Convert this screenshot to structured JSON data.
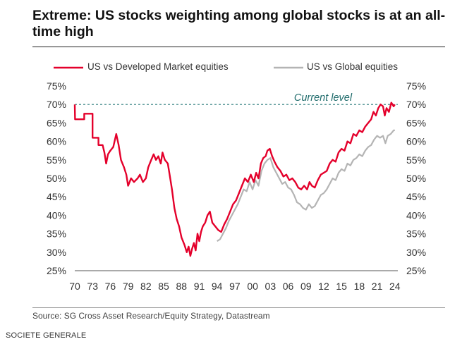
{
  "title": "Extreme: US stocks weighting among global stocks is at an all-time high",
  "source": "Source: SG Cross Asset Research/Equity Strategy, Datastream",
  "credit": "SOCIETE GENERALE",
  "colors": {
    "developed": "#e4002b",
    "global": "#b4b4b4",
    "reference": "#2e7d7d"
  },
  "chart_data": {
    "type": "line",
    "title": "Extreme: US stocks weighting among global stocks is at an all-time high",
    "xlabel": "",
    "ylabel": "",
    "xlim": [
      1970,
      2024.5
    ],
    "ylim": [
      25,
      75
    ],
    "x_ticks": [
      {
        "value": 1970,
        "label": "70"
      },
      {
        "value": 1973,
        "label": "73"
      },
      {
        "value": 1976,
        "label": "76"
      },
      {
        "value": 1979,
        "label": "79"
      },
      {
        "value": 1982,
        "label": "82"
      },
      {
        "value": 1985,
        "label": "85"
      },
      {
        "value": 1988,
        "label": "88"
      },
      {
        "value": 1991,
        "label": "91"
      },
      {
        "value": 1994,
        "label": "94"
      },
      {
        "value": 1997,
        "label": "97"
      },
      {
        "value": 2000,
        "label": "00"
      },
      {
        "value": 2003,
        "label": "03"
      },
      {
        "value": 2006,
        "label": "06"
      },
      {
        "value": 2009,
        "label": "09"
      },
      {
        "value": 2012,
        "label": "12"
      },
      {
        "value": 2015,
        "label": "15"
      },
      {
        "value": 2018,
        "label": "18"
      },
      {
        "value": 2021,
        "label": "21"
      },
      {
        "value": 2024,
        "label": "24"
      }
    ],
    "y_ticks": [
      {
        "value": 75,
        "label": "75%"
      },
      {
        "value": 70,
        "label": "70%"
      },
      {
        "value": 65,
        "label": "65%"
      },
      {
        "value": 60,
        "label": "60%"
      },
      {
        "value": 55,
        "label": "55%"
      },
      {
        "value": 50,
        "label": "50%"
      },
      {
        "value": 45,
        "label": "45%"
      },
      {
        "value": 40,
        "label": "40%"
      },
      {
        "value": 35,
        "label": "35%"
      },
      {
        "value": 30,
        "label": "30%"
      },
      {
        "value": 25,
        "label": "25%"
      }
    ],
    "reference_line": {
      "value": 70,
      "label": "Current level"
    },
    "legend_position": "top",
    "series": [
      {
        "name": "US vs Developed Market equities",
        "color": "#e4002b",
        "points": [
          [
            1970.0,
            70
          ],
          [
            1970.05,
            66
          ],
          [
            1971.6,
            66
          ],
          [
            1971.6,
            67.5
          ],
          [
            1973.0,
            67.5
          ],
          [
            1973.0,
            61
          ],
          [
            1974.0,
            61
          ],
          [
            1974.0,
            59
          ],
          [
            1974.7,
            59
          ],
          [
            1975.0,
            57
          ],
          [
            1975.3,
            54
          ],
          [
            1975.6,
            56.5
          ],
          [
            1976.0,
            57.5
          ],
          [
            1976.5,
            58.5
          ],
          [
            1977.0,
            62
          ],
          [
            1977.4,
            59
          ],
          [
            1977.8,
            55
          ],
          [
            1978.3,
            53
          ],
          [
            1978.7,
            51
          ],
          [
            1979.0,
            48
          ],
          [
            1979.5,
            50
          ],
          [
            1980.0,
            49
          ],
          [
            1980.6,
            50
          ],
          [
            1981.0,
            51
          ],
          [
            1981.5,
            49
          ],
          [
            1982.0,
            50
          ],
          [
            1982.4,
            53
          ],
          [
            1982.9,
            55
          ],
          [
            1983.3,
            56.5
          ],
          [
            1983.7,
            55
          ],
          [
            1984.1,
            56
          ],
          [
            1984.5,
            54
          ],
          [
            1984.8,
            57
          ],
          [
            1985.2,
            55
          ],
          [
            1985.7,
            54
          ],
          [
            1986.0,
            51
          ],
          [
            1986.4,
            47
          ],
          [
            1986.8,
            42
          ],
          [
            1987.2,
            39
          ],
          [
            1987.6,
            37
          ],
          [
            1988.0,
            34
          ],
          [
            1988.5,
            32
          ],
          [
            1988.9,
            30
          ],
          [
            1989.2,
            31.5
          ],
          [
            1989.5,
            29
          ],
          [
            1989.8,
            31
          ],
          [
            1990.1,
            32.5
          ],
          [
            1990.4,
            30.5
          ],
          [
            1990.7,
            35
          ],
          [
            1991.0,
            33
          ],
          [
            1991.3,
            35.5
          ],
          [
            1991.6,
            37
          ],
          [
            1992.0,
            38
          ],
          [
            1992.4,
            40
          ],
          [
            1992.8,
            41
          ],
          [
            1993.2,
            38
          ],
          [
            1993.7,
            37
          ],
          [
            1994.2,
            36
          ],
          [
            1994.7,
            35.5
          ],
          [
            1995.2,
            37.5
          ],
          [
            1995.7,
            39
          ],
          [
            1996.2,
            41
          ],
          [
            1996.7,
            43
          ],
          [
            1997.2,
            44
          ],
          [
            1997.7,
            46
          ],
          [
            1998.2,
            48
          ],
          [
            1998.7,
            50
          ],
          [
            1999.2,
            49
          ],
          [
            1999.7,
            51
          ],
          [
            2000.2,
            49
          ],
          [
            2000.6,
            51.5
          ],
          [
            2001.0,
            50
          ],
          [
            2001.4,
            54
          ],
          [
            2001.8,
            55.5
          ],
          [
            2002.2,
            56
          ],
          [
            2002.5,
            57.5
          ],
          [
            2002.9,
            58
          ],
          [
            2003.3,
            56
          ],
          [
            2003.7,
            54.5
          ],
          [
            2004.2,
            53
          ],
          [
            2004.7,
            52
          ],
          [
            2005.2,
            50.5
          ],
          [
            2005.7,
            51
          ],
          [
            2006.2,
            49.5
          ],
          [
            2006.7,
            50
          ],
          [
            2007.2,
            49
          ],
          [
            2007.7,
            47.5
          ],
          [
            2008.2,
            47
          ],
          [
            2008.7,
            48
          ],
          [
            2009.2,
            47
          ],
          [
            2009.6,
            49
          ],
          [
            2010.0,
            48
          ],
          [
            2010.5,
            47.5
          ],
          [
            2011.0,
            49.5
          ],
          [
            2011.5,
            51
          ],
          [
            2012.0,
            51.5
          ],
          [
            2012.5,
            52
          ],
          [
            2013.0,
            54
          ],
          [
            2013.5,
            55
          ],
          [
            2014.0,
            54.5
          ],
          [
            2014.5,
            57
          ],
          [
            2015.0,
            58
          ],
          [
            2015.5,
            57.5
          ],
          [
            2016.0,
            60
          ],
          [
            2016.5,
            59.5
          ],
          [
            2017.0,
            62
          ],
          [
            2017.5,
            61.5
          ],
          [
            2018.0,
            63
          ],
          [
            2018.5,
            62.5
          ],
          [
            2019.0,
            64
          ],
          [
            2019.5,
            65
          ],
          [
            2020.0,
            66
          ],
          [
            2020.4,
            68
          ],
          [
            2020.8,
            67
          ],
          [
            2021.2,
            69
          ],
          [
            2021.6,
            70
          ],
          [
            2022.0,
            69.5
          ],
          [
            2022.3,
            67
          ],
          [
            2022.6,
            69
          ],
          [
            2023.0,
            68
          ],
          [
            2023.4,
            70.5
          ],
          [
            2023.8,
            69.5
          ],
          [
            2024.0,
            70
          ]
        ]
      },
      {
        "name": "US vs Global equities",
        "color": "#b4b4b4",
        "points": [
          [
            1994.0,
            33
          ],
          [
            1994.5,
            33.5
          ],
          [
            1995.0,
            35
          ],
          [
            1995.5,
            36.5
          ],
          [
            1996.0,
            38.5
          ],
          [
            1996.5,
            40
          ],
          [
            1997.0,
            41.5
          ],
          [
            1997.5,
            43
          ],
          [
            1998.0,
            45
          ],
          [
            1998.5,
            47
          ],
          [
            1999.0,
            46.5
          ],
          [
            1999.5,
            49
          ],
          [
            2000.0,
            47
          ],
          [
            2000.5,
            49.5
          ],
          [
            2001.0,
            48
          ],
          [
            2001.5,
            52
          ],
          [
            2002.0,
            54
          ],
          [
            2002.5,
            55
          ],
          [
            2003.0,
            55.5
          ],
          [
            2003.5,
            53
          ],
          [
            2004.0,
            51.5
          ],
          [
            2004.5,
            50
          ],
          [
            2005.0,
            48.5
          ],
          [
            2005.5,
            49
          ],
          [
            2006.0,
            47.5
          ],
          [
            2006.5,
            47
          ],
          [
            2007.0,
            45.5
          ],
          [
            2007.5,
            43.5
          ],
          [
            2008.0,
            43
          ],
          [
            2008.5,
            42
          ],
          [
            2009.0,
            41.5
          ],
          [
            2009.5,
            43
          ],
          [
            2010.0,
            42
          ],
          [
            2010.5,
            42.5
          ],
          [
            2011.0,
            44
          ],
          [
            2011.5,
            45.5
          ],
          [
            2012.0,
            46
          ],
          [
            2012.5,
            47
          ],
          [
            2013.0,
            48.5
          ],
          [
            2013.5,
            50
          ],
          [
            2014.0,
            49.5
          ],
          [
            2014.5,
            51.5
          ],
          [
            2015.0,
            52.5
          ],
          [
            2015.5,
            52
          ],
          [
            2016.0,
            54
          ],
          [
            2016.5,
            53.5
          ],
          [
            2017.0,
            55
          ],
          [
            2017.5,
            55.5
          ],
          [
            2018.0,
            56.5
          ],
          [
            2018.5,
            56
          ],
          [
            2019.0,
            57.5
          ],
          [
            2019.5,
            58.5
          ],
          [
            2020.0,
            59
          ],
          [
            2020.5,
            60.5
          ],
          [
            2021.0,
            61.5
          ],
          [
            2021.5,
            61
          ],
          [
            2022.0,
            61.5
          ],
          [
            2022.4,
            59.5
          ],
          [
            2022.8,
            61.5
          ],
          [
            2023.3,
            62
          ],
          [
            2023.8,
            63
          ],
          [
            2024.0,
            63
          ]
        ]
      }
    ]
  }
}
